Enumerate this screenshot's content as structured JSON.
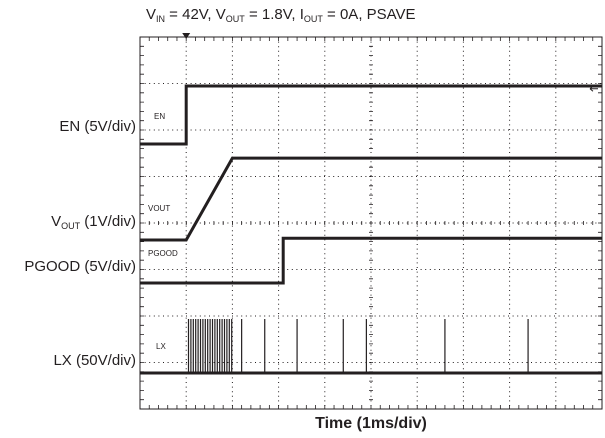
{
  "title": {
    "vin_sym": "V",
    "vin_sub": "IN",
    "vin_rest": " = 42V, ",
    "vout_sym": "V",
    "vout_sub": "OUT",
    "vout_rest": " = 1.8V, ",
    "iout_sym": "I",
    "iout_sub": "OUT",
    "iout_rest": " = 0A, PSAVE"
  },
  "channel_labels": {
    "en": "EN (5V/div)",
    "vout_sym": "V",
    "vout_sub": "OUT",
    "vout_rest": " (1V/div)",
    "pgood": "PGOOD (5V/div)",
    "lx": "LX (50V/div)"
  },
  "trace_tags": {
    "en": "EN",
    "vout": "VOUT",
    "pgood": "PGOOD",
    "lx": "LX"
  },
  "xlabel": "Time (1ms/div)",
  "colors": {
    "trace": "#231f20",
    "grid": "#231f20",
    "background": "#ffffff"
  },
  "chart_data": {
    "type": "line",
    "title": "VIN = 42V, VOUT = 1.8V, IOUT = 0A, PSAVE",
    "xlabel": "Time (1ms/div)",
    "x_divisions": 10,
    "y_divisions": 8,
    "grid": true,
    "trigger_marker_div": 1,
    "series": [
      {
        "name": "EN",
        "scale": "5V/div",
        "x": [
          0,
          1.0,
          1.0,
          10
        ],
        "y_div": [
          1.3,
          1.3,
          3.1,
          3.1
        ]
      },
      {
        "name": "VOUT",
        "scale": "1V/div",
        "x": [
          0,
          1.0,
          2.0,
          10
        ],
        "y_div": [
          1.0,
          1.0,
          2.8,
          2.8
        ]
      },
      {
        "name": "PGOOD",
        "scale": "5V/div",
        "x": [
          0,
          3.1,
          3.1,
          10
        ],
        "y_div": [
          1.2,
          1.2,
          3.0,
          3.0
        ]
      },
      {
        "name": "LX",
        "scale": "50V/div",
        "x": [
          0,
          10
        ],
        "y_div": [
          0,
          0
        ],
        "pulse_burst_div": [
          1.05,
          2.0
        ],
        "pulses_div": [
          2.2,
          2.7,
          3.4,
          4.4,
          4.9,
          6.6,
          8.4
        ],
        "pulse_height_div": 1.0
      }
    ]
  }
}
